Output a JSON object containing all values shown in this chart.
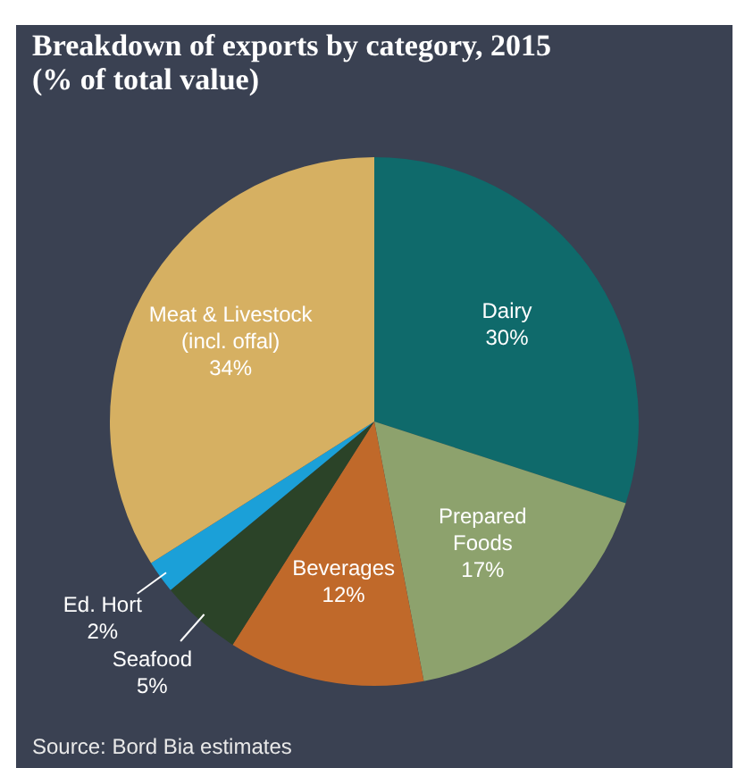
{
  "chart_data": {
    "type": "pie",
    "title": "Breakdown of exports by category, 2015\n(% of total value)",
    "categories": [
      "Dairy",
      "Prepared\nFoods",
      "Beverages",
      "Seafood",
      "Ed. Hort",
      "Meat & Livestock\n(incl. offal)"
    ],
    "values": [
      30,
      17,
      12,
      5,
      2,
      34
    ],
    "value_labels": [
      "30%",
      "17%",
      "12%",
      "5%",
      "2%",
      "34%"
    ],
    "colors": [
      "#0f6a6b",
      "#8da26d",
      "#c0692a",
      "#2b4328",
      "#1ba0d8",
      "#d6b062"
    ],
    "legend": false,
    "annotations": [
      "Source: Bord Bia estimates"
    ]
  }
}
